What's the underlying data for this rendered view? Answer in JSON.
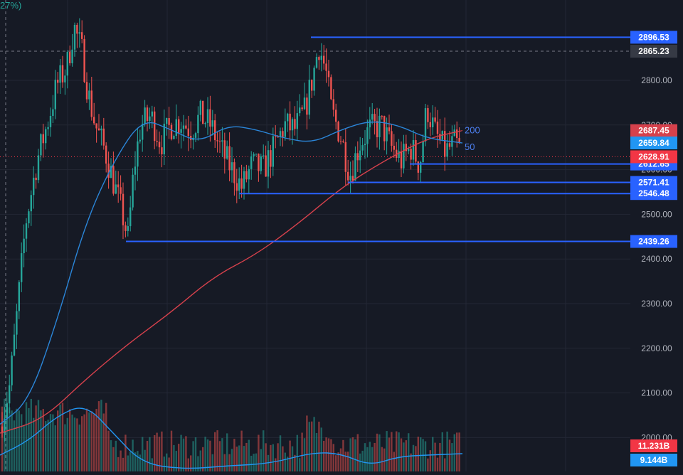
{
  "corner_text": "27%)",
  "colors": {
    "background": "#161a25",
    "grid": "#232735",
    "bull": "#26a69a",
    "bear": "#ef5350",
    "ma50": "#2b86d9",
    "ma200": "#d6414c",
    "level": "#2962ff",
    "axis_text": "#b2b5be",
    "crosshair": "#787b86",
    "last_price": "#f23645",
    "volume_ma": "#2196f3",
    "crosshair_tag": "#363a45"
  },
  "chart_data": {
    "type": "candlestick",
    "price_axis": {
      "range": [
        2005,
        2960
      ],
      "ticks": [
        2000,
        2100,
        2200,
        2300,
        2400,
        2500,
        2600,
        2700,
        2800
      ],
      "tick_labels": [
        "2000.00",
        "2100.00",
        "2200.00",
        "2300.00",
        "2400.00",
        "2500.00",
        "2600.00",
        "2700.00",
        "2800.00"
      ]
    },
    "grid": true,
    "crosshair": {
      "price": 2865.23,
      "label": "2865.23"
    },
    "last_price": {
      "value": 2628.91,
      "label": "2628.91"
    },
    "moving_averages": [
      {
        "name": "200",
        "value": 2687.45,
        "label": "2687.45"
      },
      {
        "name": "50",
        "value": 2659.84,
        "label": "2659.84"
      }
    ],
    "horizontal_levels": [
      {
        "value": 2896.53,
        "label": "2896.53"
      },
      {
        "value": 2612.65,
        "label": "2612.65"
      },
      {
        "value": 2571.41,
        "label": "2571.41"
      },
      {
        "value": 2546.48,
        "label": "2546.48"
      },
      {
        "value": 2439.26,
        "label": "2439.26"
      }
    ],
    "volume": [
      {
        "label": "11.231B",
        "series": "volume"
      },
      {
        "label": "9.144B",
        "series": "volume-ma"
      }
    ]
  }
}
